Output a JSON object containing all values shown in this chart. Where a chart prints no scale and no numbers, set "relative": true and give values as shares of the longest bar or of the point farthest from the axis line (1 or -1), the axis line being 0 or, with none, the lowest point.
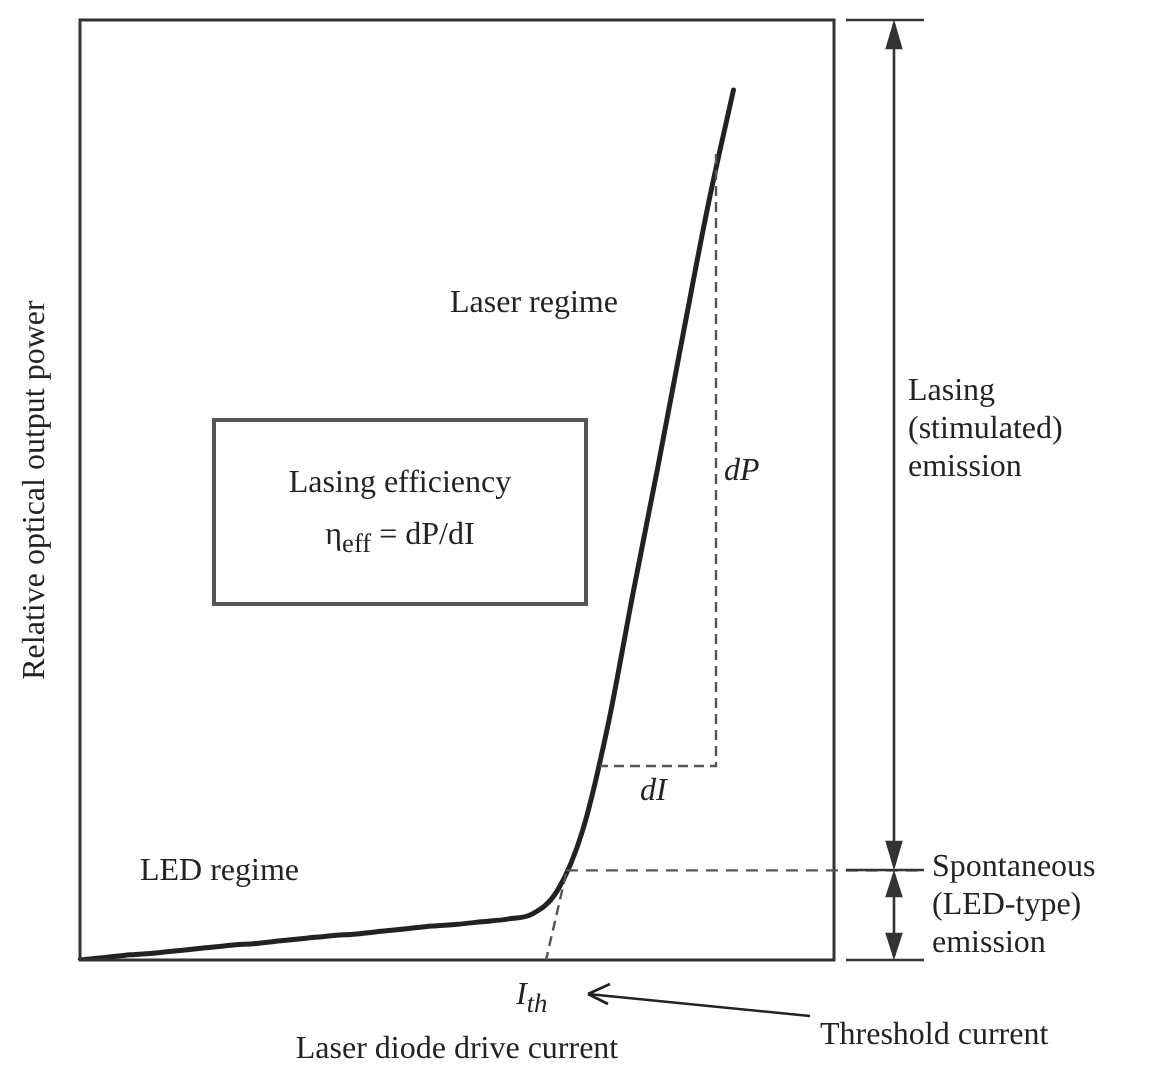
{
  "chart_data": {
    "type": "line",
    "relative": true,
    "xlabel": "Laser diode drive current",
    "ylabel": "Relative optical output power",
    "categories": [
      null,
      null,
      null,
      null,
      null,
      null,
      null,
      null,
      null,
      null,
      null,
      null,
      null,
      null,
      null,
      null,
      null,
      null,
      null,
      null,
      null,
      null,
      null,
      null,
      null,
      null,
      null,
      null,
      null,
      null,
      null
    ],
    "values": [
      0,
      0.003,
      0.006,
      0.008,
      0.011,
      0.014,
      0.017,
      0.019,
      0.022,
      0.025,
      0.028,
      0.03,
      0.033,
      0.036,
      0.039,
      0.041,
      0.044,
      0.047,
      0.053,
      0.08,
      0.149,
      0.269,
      0.421,
      0.568,
      0.72,
      0.869,
      1,
      null,
      null,
      null,
      null
    ],
    "color": "#222222",
    "marker": "none",
    "ref_lines": [
      {
        "axis": "y",
        "value": 0.103,
        "line_style": "dashed",
        "color": "#555555"
      }
    ],
    "annotations": [
      "Laser regime",
      "Lasing efficiency",
      "η$_{eff}$ = dP/dI",
      "LED regime",
      "dP",
      "dI",
      "I$_{th}$",
      "Threshold current",
      "Lasing (stimulated) emission",
      "Spontaneous (LED-type) emission"
    ]
  }
}
